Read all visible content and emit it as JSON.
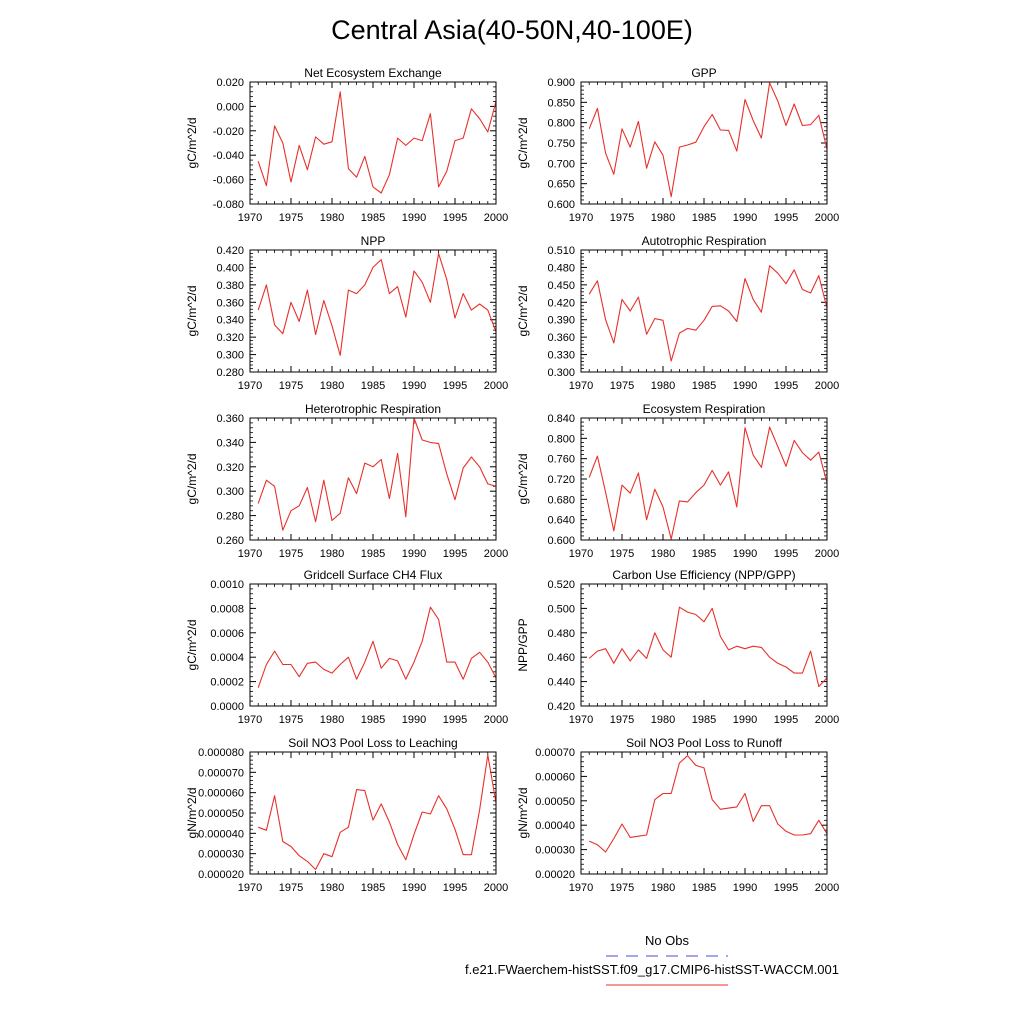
{
  "figure": {
    "title": "Central Asia(40-50N,40-100E)",
    "line_color": "#e8302a",
    "obs_color": "#4b4bd6"
  },
  "legend": {
    "entries": [
      {
        "label": "No Obs",
        "style": "dashed",
        "color": "#4b4bd6"
      },
      {
        "label": "f.e21.FWaerchem-histSST.f09_g17.CMIP6-histSST-WACCM.001",
        "style": "solid",
        "color": "#e8302a"
      }
    ]
  },
  "chart_data": [
    {
      "type": "line",
      "title": "Net Ecosystem Exchange",
      "ylabel": "gC/m^2/d",
      "xlim": [
        1970,
        2000
      ],
      "xticks": [
        1970,
        1975,
        1980,
        1985,
        1990,
        1995,
        2000
      ],
      "ylim": [
        -0.08,
        0.02
      ],
      "yticks": [
        -0.08,
        -0.06,
        -0.04,
        -0.02,
        0.0,
        0.02
      ],
      "ydecimals": 3,
      "x_start": 1971,
      "values": [
        -0.045,
        -0.065,
        -0.016,
        -0.03,
        -0.062,
        -0.032,
        -0.052,
        -0.025,
        -0.031,
        -0.029,
        0.012,
        -0.051,
        -0.058,
        -0.041,
        -0.066,
        -0.071,
        -0.056,
        -0.026,
        -0.032,
        -0.026,
        -0.028,
        -0.006,
        -0.066,
        -0.053,
        -0.028,
        -0.026,
        -0.002,
        -0.01,
        -0.021,
        0.004
      ]
    },
    {
      "type": "line",
      "title": "GPP",
      "ylabel": "gC/m^2/d",
      "xlim": [
        1970,
        2000
      ],
      "xticks": [
        1970,
        1975,
        1980,
        1985,
        1990,
        1995,
        2000
      ],
      "ylim": [
        0.6,
        0.9
      ],
      "yticks": [
        0.6,
        0.65,
        0.7,
        0.75,
        0.8,
        0.85,
        0.9
      ],
      "ydecimals": 3,
      "x_start": 1971,
      "values": [
        0.785,
        0.835,
        0.725,
        0.673,
        0.785,
        0.74,
        0.803,
        0.688,
        0.753,
        0.72,
        0.618,
        0.74,
        0.745,
        0.752,
        0.79,
        0.82,
        0.782,
        0.781,
        0.73,
        0.857,
        0.805,
        0.762,
        0.898,
        0.853,
        0.793,
        0.846,
        0.793,
        0.795,
        0.818,
        0.735
      ]
    },
    {
      "type": "line",
      "title": "NPP",
      "ylabel": "gC/m^2/d",
      "xlim": [
        1970,
        2000
      ],
      "xticks": [
        1970,
        1975,
        1980,
        1985,
        1990,
        1995,
        2000
      ],
      "ylim": [
        0.28,
        0.42
      ],
      "yticks": [
        0.28,
        0.3,
        0.32,
        0.34,
        0.36,
        0.38,
        0.4,
        0.42
      ],
      "ydecimals": 3,
      "x_start": 1971,
      "values": [
        0.351,
        0.38,
        0.334,
        0.324,
        0.36,
        0.338,
        0.374,
        0.323,
        0.362,
        0.333,
        0.299,
        0.374,
        0.37,
        0.38,
        0.4,
        0.409,
        0.37,
        0.378,
        0.343,
        0.396,
        0.383,
        0.36,
        0.416,
        0.386,
        0.342,
        0.37,
        0.351,
        0.358,
        0.351,
        0.326
      ]
    },
    {
      "type": "line",
      "title": "Autotrophic Respiration",
      "ylabel": "gC/m^2/d",
      "xlim": [
        1970,
        2000
      ],
      "xticks": [
        1970,
        1975,
        1980,
        1985,
        1990,
        1995,
        2000
      ],
      "ylim": [
        0.3,
        0.51
      ],
      "yticks": [
        0.3,
        0.33,
        0.36,
        0.39,
        0.42,
        0.45,
        0.48,
        0.51
      ],
      "ydecimals": 3,
      "x_start": 1971,
      "values": [
        0.434,
        0.457,
        0.39,
        0.35,
        0.425,
        0.405,
        0.429,
        0.365,
        0.392,
        0.389,
        0.319,
        0.367,
        0.375,
        0.372,
        0.389,
        0.413,
        0.414,
        0.405,
        0.387,
        0.461,
        0.425,
        0.403,
        0.483,
        0.47,
        0.452,
        0.476,
        0.442,
        0.436,
        0.466,
        0.41
      ]
    },
    {
      "type": "line",
      "title": "Heterotrophic Respiration",
      "ylabel": "gC/m^2/d",
      "xlim": [
        1970,
        2000
      ],
      "xticks": [
        1970,
        1975,
        1980,
        1985,
        1990,
        1995,
        2000
      ],
      "ylim": [
        0.26,
        0.36
      ],
      "yticks": [
        0.26,
        0.28,
        0.3,
        0.32,
        0.34,
        0.36
      ],
      "ydecimals": 3,
      "x_start": 1971,
      "values": [
        0.29,
        0.309,
        0.304,
        0.268,
        0.284,
        0.288,
        0.303,
        0.275,
        0.309,
        0.276,
        0.282,
        0.311,
        0.298,
        0.323,
        0.32,
        0.326,
        0.294,
        0.331,
        0.279,
        0.36,
        0.342,
        0.34,
        0.339,
        0.314,
        0.293,
        0.319,
        0.328,
        0.32,
        0.306,
        0.304
      ]
    },
    {
      "type": "line",
      "title": "Ecosystem Respiration",
      "ylabel": "gC/m^2/d",
      "xlim": [
        1970,
        2000
      ],
      "xticks": [
        1970,
        1975,
        1980,
        1985,
        1990,
        1995,
        2000
      ],
      "ylim": [
        0.6,
        0.84
      ],
      "yticks": [
        0.6,
        0.64,
        0.68,
        0.72,
        0.76,
        0.8,
        0.84
      ],
      "ydecimals": 3,
      "x_start": 1971,
      "values": [
        0.723,
        0.765,
        0.694,
        0.618,
        0.708,
        0.692,
        0.732,
        0.64,
        0.7,
        0.665,
        0.602,
        0.677,
        0.675,
        0.693,
        0.708,
        0.737,
        0.708,
        0.734,
        0.665,
        0.821,
        0.767,
        0.743,
        0.822,
        0.784,
        0.745,
        0.796,
        0.772,
        0.757,
        0.773,
        0.713
      ]
    },
    {
      "type": "line",
      "title": "Gridcell Surface CH4 Flux",
      "ylabel": "gC/m^2/d",
      "xlim": [
        1970,
        2000
      ],
      "xticks": [
        1970,
        1975,
        1980,
        1985,
        1990,
        1995,
        2000
      ],
      "ylim": [
        0.0,
        0.001
      ],
      "yticks": [
        0.0,
        0.0002,
        0.0004,
        0.0006,
        0.0008,
        0.001
      ],
      "ydecimals": 4,
      "x_start": 1971,
      "values": [
        0.00015,
        0.00034,
        0.00045,
        0.00034,
        0.00034,
        0.00024,
        0.00035,
        0.00036,
        0.0003,
        0.00027,
        0.00034,
        0.0004,
        0.00022,
        0.00036,
        0.00053,
        0.00031,
        0.00039,
        0.00037,
        0.00022,
        0.00036,
        0.00053,
        0.00081,
        0.00071,
        0.00036,
        0.00036,
        0.00022,
        0.00039,
        0.00044,
        0.00036,
        0.00023
      ]
    },
    {
      "type": "line",
      "title": "Carbon Use Efficiency (NPP/GPP)",
      "ylabel": "NPP/GPP",
      "xlim": [
        1970,
        2000
      ],
      "xticks": [
        1970,
        1975,
        1980,
        1985,
        1990,
        1995,
        2000
      ],
      "ylim": [
        0.42,
        0.52
      ],
      "yticks": [
        0.42,
        0.44,
        0.46,
        0.48,
        0.5,
        0.52
      ],
      "ydecimals": 3,
      "x_start": 1971,
      "values": [
        0.459,
        0.465,
        0.467,
        0.455,
        0.467,
        0.457,
        0.466,
        0.459,
        0.48,
        0.466,
        0.46,
        0.501,
        0.497,
        0.495,
        0.489,
        0.5,
        0.477,
        0.466,
        0.469,
        0.467,
        0.469,
        0.468,
        0.46,
        0.455,
        0.452,
        0.447,
        0.447,
        0.465,
        0.436,
        0.443
      ]
    },
    {
      "type": "line",
      "title": "Soil NO3 Pool Loss to Leaching",
      "ylabel": "gN/m^2/d",
      "xlim": [
        1970,
        2000
      ],
      "xticks": [
        1970,
        1975,
        1980,
        1985,
        1990,
        1995,
        2000
      ],
      "ylim": [
        2e-05,
        8e-05
      ],
      "yticks": [
        2e-05,
        3e-05,
        4e-05,
        5e-05,
        6e-05,
        7e-05,
        8e-05
      ],
      "ydecimals": 6,
      "x_start": 1971,
      "values": [
        4.3e-05,
        4.15e-05,
        5.85e-05,
        3.6e-05,
        3.35e-05,
        2.9e-05,
        2.62e-05,
        2.22e-05,
        3e-05,
        2.85e-05,
        4.05e-05,
        4.3e-05,
        6.15e-05,
        6.1e-05,
        4.65e-05,
        5.45e-05,
        4.55e-05,
        3.45e-05,
        2.7e-05,
        3.95e-05,
        5.05e-05,
        4.95e-05,
        5.85e-05,
        5.2e-05,
        4.2e-05,
        2.95e-05,
        2.95e-05,
        5.15e-05,
        7.85e-05,
        5.5e-05
      ]
    },
    {
      "type": "line",
      "title": "Soil NO3 Pool Loss to Runoff",
      "ylabel": "gN/m^2/d",
      "xlim": [
        1970,
        2000
      ],
      "xticks": [
        1970,
        1975,
        1980,
        1985,
        1990,
        1995,
        2000
      ],
      "ylim": [
        0.0002,
        0.0007
      ],
      "yticks": [
        0.0002,
        0.0003,
        0.0004,
        0.0005,
        0.0006,
        0.0007
      ],
      "ydecimals": 5,
      "x_start": 1971,
      "values": [
        0.000335,
        0.00032,
        0.00029,
        0.000345,
        0.000405,
        0.00035,
        0.000355,
        0.00036,
        0.000505,
        0.00053,
        0.00053,
        0.000655,
        0.000685,
        0.000645,
        0.000635,
        0.000505,
        0.000465,
        0.00047,
        0.000475,
        0.00053,
        0.000415,
        0.00048,
        0.00048,
        0.000405,
        0.000375,
        0.00036,
        0.00036,
        0.000365,
        0.00042,
        0.000365
      ]
    }
  ]
}
